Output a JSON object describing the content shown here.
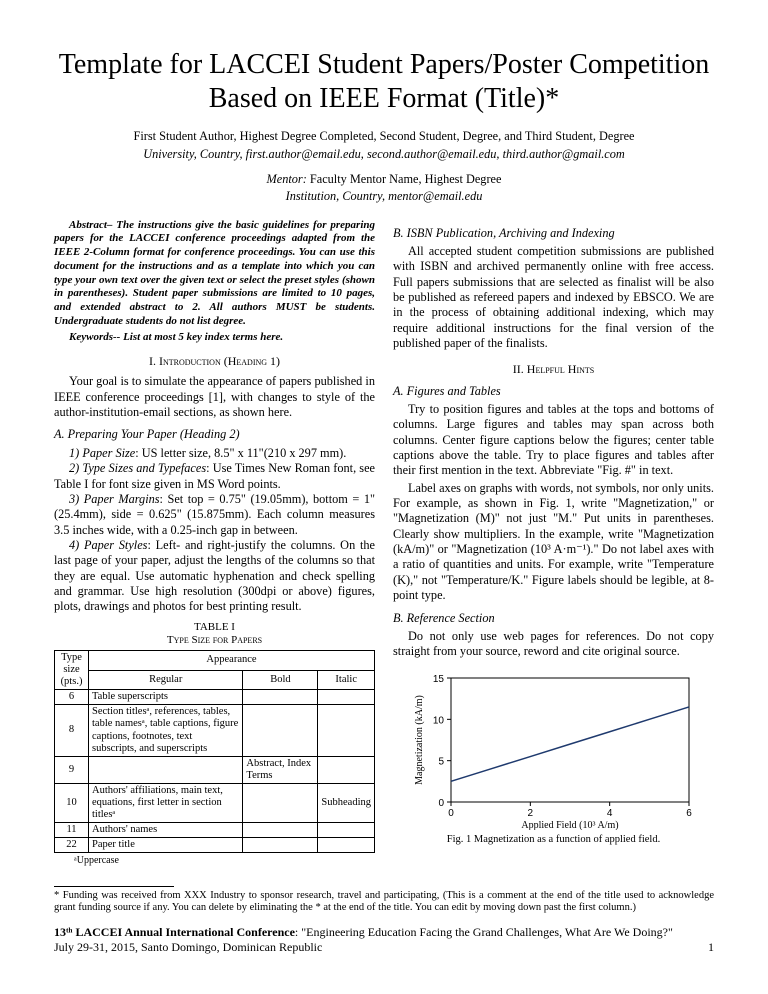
{
  "title": "Template for LACCEI Student Papers/Poster Competition Based on IEEE Format (Title)*",
  "authors": "First Student Author, Highest Degree Completed, Second Student, Degree, and Third Student, Degree",
  "affiliation": "University, Country, first.author@email.edu, second.author@email.edu, third.author@gmail.com",
  "mentor_label": "Mentor:",
  "mentor_name": "Faculty Mentor Name, Highest Degree",
  "mentor_affiliation": "Institution, Country, mentor@email.edu",
  "abstract": "Abstract– The instructions give the basic guidelines for preparing papers for the LACCEI conference proceedings adapted from the IEEE 2-Column format for conference proceedings. You can use this document for the instructions and as a template into which you can type your own text over the given text or select the preset styles (shown in parentheses).  Student paper submissions are limited to 10 pages, and extended abstract to 2. All authors MUST be students. Undergraduate students do not list degree.",
  "keywords": "Keywords-- List at most 5 key index terms here.",
  "sec1_heading": "I.  Introduction (Heading 1)",
  "sec1_p1": "Your goal is to simulate the appearance of papers published in IEEE conference proceedings [1], with changes to style of the author-institution-email sections, as shown here.",
  "sec1a_heading": "A.   Preparing Your Paper (Heading 2)",
  "sec1a_i1_label": "1) Paper Size",
  "sec1a_i1_text": ": US letter size, 8.5\" x 11\"(210 x 297 mm).",
  "sec1a_i2_label": "2) Type Sizes and Typefaces",
  "sec1a_i2_text": ": Use Times New Roman font, see Table I for font size given in MS Word points.",
  "sec1a_i3_label": "3) Paper Margins",
  "sec1a_i3_text": ": Set top = 0.75\" (19.05mm), bottom = 1\" (25.4mm), side = 0.625\" (15.875mm). Each column measures 3.5 inches wide, with a 0.25-inch gap in between.",
  "sec1a_i4_label": "4) Paper Styles",
  "sec1a_i4_text": ": Left- and right-justify the columns. On the last page of your paper, adjust the lengths of the columns so that they are equal. Use automatic hyphenation and check spelling and grammar. Use high resolution (300dpi or above) figures, plots, drawings and photos for best printing result.",
  "table_label": "TABLE I",
  "table_title": "Type Size for Papers",
  "table": {
    "h_type": "Type size (pts.)",
    "h_app": "Appearance",
    "h_reg": "Regular",
    "h_bold": "Bold",
    "h_italic": "Italic",
    "rows": [
      {
        "size": "6",
        "reg": "Table superscripts",
        "bold": "",
        "italic": ""
      },
      {
        "size": "8",
        "reg": "Section titlesᵃ, references, tables, table namesᵃ, table captions, figure captions, footnotes, text subscripts, and superscripts",
        "bold": "",
        "italic": ""
      },
      {
        "size": "9",
        "reg": "",
        "bold": "Abstract, Index Terms",
        "italic": ""
      },
      {
        "size": "10",
        "reg": "Authors' affiliations, main text, equations, first letter in section titlesᵃ",
        "bold": "",
        "italic": "Subheading"
      },
      {
        "size": "11",
        "reg": "Authors' names",
        "bold": "",
        "italic": ""
      },
      {
        "size": "22",
        "reg": "Paper title",
        "bold": "",
        "italic": ""
      }
    ],
    "footnote": "ᵃUppercase"
  },
  "sec1b_heading": "B.   ISBN Publication, Archiving and Indexing",
  "sec1b_p1": "All accepted student competition submissions are published with ISBN and archived permanently online with free access. Full papers submissions that are selected as finalist will be also be published as refereed papers and indexed by EBSCO.  We are in the process of obtaining additional indexing, which may require additional instructions for the final version of the published paper of the finalists.",
  "sec2_heading": "II. Helpful Hints",
  "sec2a_heading": "A.   Figures and Tables",
  "sec2a_p1": "Try to position figures and tables at the tops and bottoms of columns. Large figures and tables may span across both columns. Center figure captions below the figures; center table captions above the table. Try to place figures and tables after their first mention in the text. Abbreviate \"Fig. #\" in text.",
  "sec2a_p2": "Label axes on graphs with words, not symbols, nor only units. For example, as shown in Fig. 1, write \"Magnetization,\" or \"Magnetization (M)\" not just \"M.\"  Put units in parentheses. Clearly show multipliers.  In the example, write \"Magnetization (kA/m)\" or \"Magnetization (10³ A·m⁻¹).\" Do not label axes with a ratio of quantities and units. For example, write \"Temperature (K),\" not \"Temperature/K.\" Figure labels should be legible, at 8-point type.",
  "sec2b_heading": "B.   Reference Section",
  "sec2b_p1": "Do not only use web pages for references. Do not copy straight from your source, reword and cite original source.",
  "chart": {
    "type": "line",
    "x_values": [
      0,
      2,
      4,
      6
    ],
    "y_values": [
      0,
      5,
      10,
      15
    ],
    "series_x": [
      0,
      1,
      2,
      3,
      4,
      5,
      6
    ],
    "series_y": [
      2.5,
      4.0,
      5.5,
      7.0,
      8.5,
      10.0,
      11.5
    ],
    "line_color": "#1f3a6e",
    "axis_color": "#000000",
    "xlabel": "Applied Field (10³ A/m)",
    "ylabel": "Magnetization (kA/m)",
    "xlim": [
      0,
      6
    ],
    "ylim": [
      0,
      15
    ],
    "caption": "Fig. 1 Magnetization as a function of applied field."
  },
  "footnote": "* Funding was received from XXX Industry to sponsor research, travel and participating, (This is a comment at the end of the title used to acknowledge grant funding source if any. You can delete by eliminating the * at the end of the title.  You can edit by moving down past the first column.)",
  "footer_line1a": "13ᵗʰ LACCEI Annual International Conference",
  "footer_line1b": ": \"Engineering Education Facing the Grand Challenges, What Are We Doing?\"",
  "footer_line2": "July 29-31, 2015, Santo Domingo, Dominican Republic",
  "page_num": "1"
}
